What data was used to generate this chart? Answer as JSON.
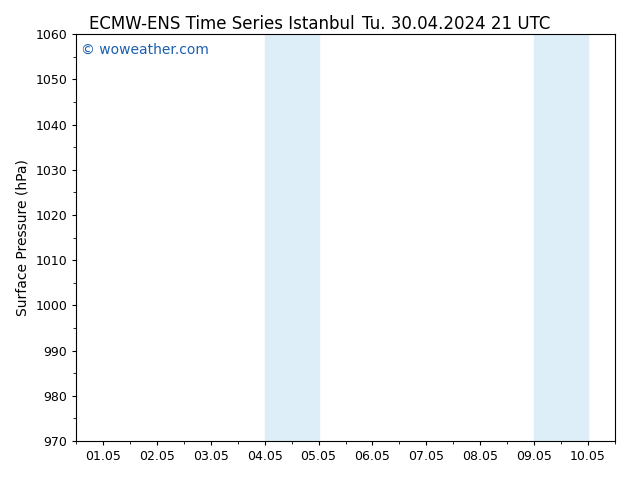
{
  "title_left": "ECMW-ENS Time Series Istanbul",
  "title_right": "Tu. 30.04.2024 21 UTC",
  "ylabel": "Surface Pressure (hPa)",
  "ylim": [
    970,
    1060
  ],
  "yticks": [
    970,
    980,
    990,
    1000,
    1010,
    1020,
    1030,
    1040,
    1050,
    1060
  ],
  "xtick_labels": [
    "01.05",
    "02.05",
    "03.05",
    "04.05",
    "05.05",
    "06.05",
    "07.05",
    "08.05",
    "09.05",
    "10.05"
  ],
  "xtick_positions": [
    0,
    1,
    2,
    3,
    4,
    5,
    6,
    7,
    8,
    9
  ],
  "xlim": [
    -0.5,
    9.5
  ],
  "shaded_regions": [
    {
      "xmin": 3.0,
      "xmax": 4.0
    },
    {
      "xmin": 8.0,
      "xmax": 9.0
    }
  ],
  "shade_color": "#ddeef8",
  "watermark_text": "© woweather.com",
  "watermark_color": "#1a5faf",
  "background_color": "#ffffff",
  "title_fontsize": 12,
  "axis_label_fontsize": 10,
  "tick_fontsize": 9,
  "watermark_fontsize": 10
}
